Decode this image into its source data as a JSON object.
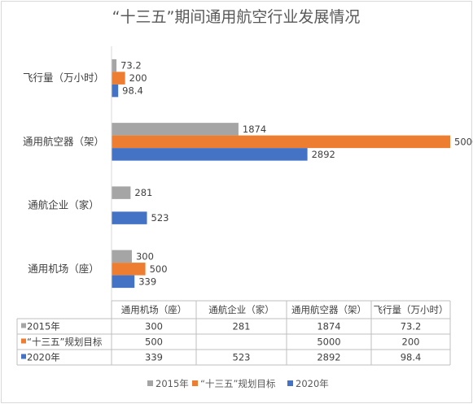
{
  "chart_data": {
    "type": "bar",
    "orientation": "horizontal",
    "title": "“十三五”期间通用航空行业发展情况",
    "categories": [
      "通用机场（座）",
      "通航企业（家）",
      "通用航空器（架）",
      "飞行量（万小时）"
    ],
    "series": [
      {
        "name": "2015年",
        "color": "#a5a5a5",
        "values": [
          300,
          281,
          1874,
          73.2
        ]
      },
      {
        "name": "“十三五”规划目标",
        "color": "#ed7d31",
        "values": [
          500,
          null,
          5000,
          200
        ]
      },
      {
        "name": "2020年",
        "color": "#4472c4",
        "values": [
          339,
          523,
          2892,
          98.4
        ]
      }
    ],
    "xlim": [
      0,
      5000
    ],
    "grid": false,
    "legend": "bottom",
    "data_table": true
  }
}
